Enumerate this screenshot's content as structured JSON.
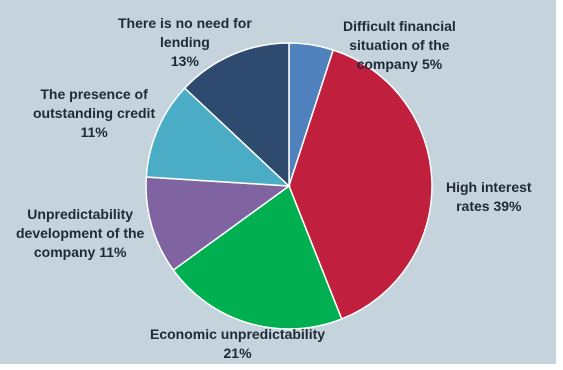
{
  "chart_data": {
    "type": "pie",
    "slices": [
      {
        "label": [
          "Difficult financial",
          "situation of the",
          "company 5%"
        ],
        "value": 5,
        "color": "#4f81bd"
      },
      {
        "label": [
          "High interest",
          "rates 39%"
        ],
        "value": 39,
        "color": "#c0203d"
      },
      {
        "label": [
          "Economic unpredictability",
          "21%"
        ],
        "value": 21,
        "color": "#00b050"
      },
      {
        "label": [
          "Unpredictability",
          "development of the",
          "company 11%"
        ],
        "value": 11,
        "color": "#8064a2"
      },
      {
        "label": [
          "The presence of",
          "outstanding credit",
          "11%"
        ],
        "value": 11,
        "color": "#4bacc6"
      },
      {
        "label": [
          "There is no need for",
          "lending",
          "13%"
        ],
        "value": 13,
        "color": "#2e4a6f"
      }
    ]
  }
}
